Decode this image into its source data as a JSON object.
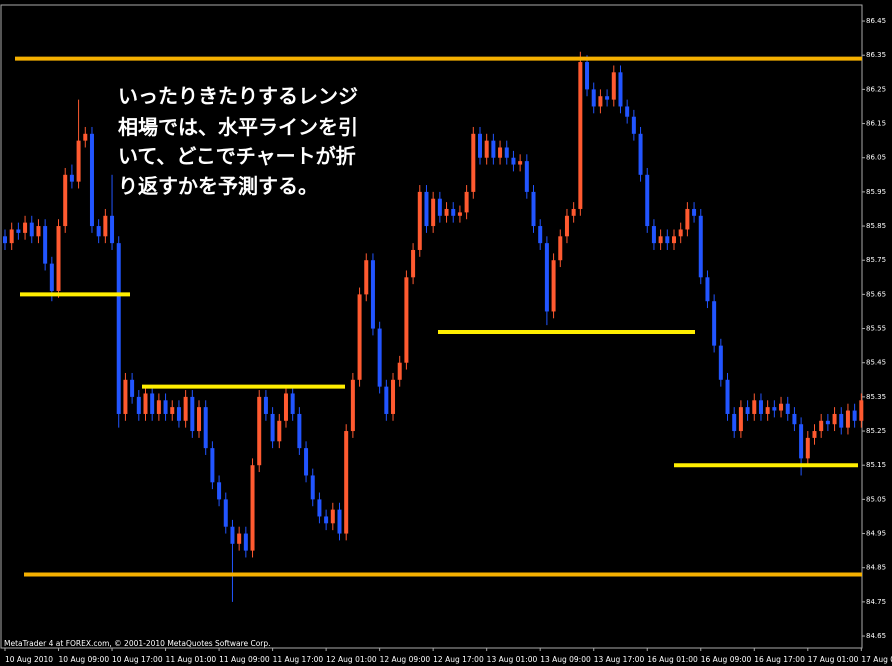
{
  "chart_data": {
    "type": "candlestick",
    "footer": "MetaTrader 4 at FOREX.com, © 2001-2010 MetaQuotes Software Corp.",
    "annotation": [
      "いったりきたりするレンジ",
      "相場では、水平ラインを引",
      "いて、どこでチャートが折",
      "り返すかを予測する。"
    ],
    "up_color": "#ff5a30",
    "down_color": "#2255ff",
    "ylim": [
      84.615,
      86.497
    ],
    "yticks": [
      86.45,
      86.35,
      86.25,
      86.15,
      86.05,
      85.95,
      85.85,
      85.75,
      85.65,
      85.55,
      85.45,
      85.35,
      85.25,
      85.15,
      85.05,
      84.95,
      84.85,
      84.75,
      84.65
    ],
    "levels": [
      {
        "value": 86.34,
        "color": "#f5b000"
      },
      {
        "value": 85.65,
        "color": "#ffee00"
      },
      {
        "value": 85.38,
        "color": "#ffee00"
      },
      {
        "value": 85.54,
        "color": "#ffee00"
      },
      {
        "value": 85.15,
        "color": "#ffee00"
      },
      {
        "value": 84.83,
        "color": "#f5b000"
      }
    ],
    "categories": [
      "10 Aug 2010",
      null,
      null,
      null,
      null,
      null,
      null,
      null,
      "10 Aug 09:00",
      null,
      null,
      null,
      null,
      null,
      null,
      null,
      "10 Aug 17:00",
      null,
      null,
      null,
      null,
      null,
      null,
      null,
      "11 Aug 01:00",
      null,
      null,
      null,
      null,
      null,
      null,
      null,
      "11 Aug 09:00",
      null,
      null,
      null,
      null,
      null,
      null,
      null,
      "11 Aug 17:00",
      null,
      null,
      null,
      null,
      null,
      null,
      null,
      "12 Aug 01:00",
      null,
      null,
      null,
      null,
      null,
      null,
      null,
      "12 Aug 09:00",
      null,
      null,
      null,
      null,
      null,
      null,
      null,
      "12 Aug 17:00",
      null,
      null,
      null,
      null,
      null,
      null,
      null,
      "13 Aug 01:00",
      null,
      null,
      null,
      null,
      null,
      null,
      null,
      "13 Aug 09:00",
      null,
      null,
      null,
      null,
      null,
      null,
      null,
      "13 Aug 17:00",
      null,
      null,
      null,
      null,
      null,
      null,
      null,
      "16 Aug 01:00",
      null,
      null,
      null,
      null,
      null,
      null,
      null,
      "16 Aug 09:00",
      null,
      null,
      null,
      null,
      null,
      null,
      null,
      "16 Aug 17:00",
      null,
      null,
      null,
      null,
      null,
      null,
      null,
      "17 Aug 01:00",
      null,
      null,
      null,
      null,
      null,
      null,
      null,
      "17 Aug 09:00"
    ],
    "open": [
      85.82,
      85.8,
      85.84,
      85.83,
      85.86,
      85.82,
      85.85,
      85.74,
      85.66,
      85.85,
      86.0,
      85.98,
      86.1,
      86.12,
      85.85,
      85.82,
      85.88,
      85.8,
      85.3,
      85.4,
      85.35,
      85.3,
      85.36,
      85.3,
      85.34,
      85.3,
      85.32,
      85.28,
      85.35,
      85.25,
      85.32,
      85.2,
      85.1,
      85.05,
      84.97,
      84.92,
      84.95,
      84.9,
      85.15,
      85.35,
      85.3,
      85.22,
      85.28,
      85.36,
      85.3,
      85.2,
      85.12,
      85.05,
      85.0,
      84.98,
      85.02,
      84.95,
      85.25,
      85.4,
      85.65,
      85.75,
      85.55,
      85.38,
      85.3,
      85.4,
      85.45,
      85.7,
      85.78,
      85.95,
      85.85,
      85.93,
      85.88,
      85.9,
      85.88,
      85.89,
      85.95,
      86.12,
      86.05,
      86.1,
      86.05,
      86.08,
      86.05,
      86.03,
      86.04,
      85.95,
      85.85,
      85.8,
      85.6,
      85.75,
      85.82,
      85.88,
      85.9,
      86.33,
      86.25,
      86.2,
      86.23,
      86.22,
      86.3,
      86.2,
      86.17,
      86.12,
      86.0,
      85.85,
      85.8,
      85.82,
      85.8,
      85.82,
      85.84,
      85.9,
      85.88,
      85.7,
      85.63,
      85.5,
      85.4,
      85.3,
      85.25,
      85.32,
      85.3,
      85.34,
      85.3,
      85.32,
      85.31,
      85.33,
      85.3,
      85.27,
      85.17,
      85.23,
      85.25,
      85.28,
      85.27,
      85.3,
      85.26,
      85.31,
      85.28
    ],
    "high": [
      85.84,
      85.86,
      85.86,
      85.88,
      85.88,
      85.87,
      85.87,
      85.76,
      85.87,
      86.02,
      86.03,
      86.22,
      86.14,
      86.14,
      85.87,
      85.9,
      86.0,
      85.82,
      85.42,
      85.42,
      85.37,
      85.38,
      85.38,
      85.36,
      85.36,
      85.34,
      85.34,
      85.37,
      85.37,
      85.34,
      85.34,
      85.22,
      85.12,
      85.07,
      84.99,
      84.97,
      84.97,
      85.17,
      85.37,
      85.37,
      85.32,
      85.3,
      85.38,
      85.38,
      85.32,
      85.22,
      85.14,
      85.07,
      85.02,
      85.04,
      85.04,
      85.27,
      85.42,
      85.67,
      85.77,
      85.77,
      85.57,
      85.4,
      85.42,
      85.47,
      85.72,
      85.8,
      85.97,
      85.97,
      85.95,
      85.95,
      85.92,
      85.92,
      85.91,
      85.97,
      86.14,
      86.14,
      86.12,
      86.12,
      86.1,
      86.1,
      86.07,
      86.06,
      86.06,
      85.97,
      85.87,
      85.82,
      85.77,
      85.84,
      85.9,
      85.92,
      86.36,
      86.35,
      86.27,
      86.25,
      86.25,
      86.32,
      86.32,
      86.22,
      86.19,
      86.14,
      86.02,
      85.87,
      85.84,
      85.84,
      85.84,
      85.86,
      85.92,
      85.92,
      85.9,
      85.72,
      85.65,
      85.52,
      85.42,
      85.32,
      85.34,
      85.34,
      85.36,
      85.36,
      85.34,
      85.34,
      85.35,
      85.35,
      85.32,
      85.29,
      85.25,
      85.27,
      85.3,
      85.3,
      85.32,
      85.32,
      85.33,
      85.33,
      85.36
    ],
    "low": [
      85.78,
      85.78,
      85.81,
      85.81,
      85.8,
      85.8,
      85.72,
      85.63,
      85.64,
      85.83,
      85.96,
      85.96,
      86.08,
      85.83,
      85.8,
      85.8,
      85.78,
      85.26,
      85.28,
      85.33,
      85.28,
      85.28,
      85.28,
      85.28,
      85.28,
      85.28,
      85.26,
      85.26,
      85.23,
      85.23,
      85.18,
      85.08,
      85.03,
      84.95,
      84.75,
      84.9,
      84.88,
      84.88,
      85.13,
      85.28,
      85.2,
      85.2,
      85.26,
      85.28,
      85.18,
      85.1,
      85.03,
      84.98,
      84.96,
      84.96,
      84.93,
      84.93,
      85.23,
      85.38,
      85.63,
      85.53,
      85.36,
      85.28,
      85.28,
      85.38,
      85.43,
      85.68,
      85.76,
      85.83,
      85.83,
      85.86,
      85.86,
      85.86,
      85.86,
      85.87,
      85.93,
      86.03,
      86.03,
      86.03,
      86.03,
      86.03,
      86.01,
      86.01,
      85.93,
      85.83,
      85.78,
      85.56,
      85.58,
      85.73,
      85.8,
      85.86,
      85.88,
      86.23,
      86.18,
      86.18,
      86.2,
      86.2,
      86.18,
      86.15,
      86.1,
      85.98,
      85.83,
      85.78,
      85.78,
      85.78,
      85.78,
      85.8,
      85.82,
      85.86,
      85.68,
      85.61,
      85.48,
      85.38,
      85.28,
      85.23,
      85.23,
      85.28,
      85.28,
      85.28,
      85.28,
      85.29,
      85.29,
      85.28,
      85.25,
      85.12,
      85.15,
      85.21,
      85.23,
      85.25,
      85.25,
      85.24,
      85.24,
      85.26,
      85.26
    ],
    "close": [
      85.8,
      85.84,
      85.83,
      85.86,
      85.82,
      85.85,
      85.74,
      85.66,
      85.85,
      86.0,
      85.98,
      86.1,
      86.12,
      85.85,
      85.82,
      85.88,
      85.8,
      85.3,
      85.4,
      85.35,
      85.3,
      85.36,
      85.3,
      85.34,
      85.3,
      85.32,
      85.28,
      85.35,
      85.25,
      85.32,
      85.2,
      85.1,
      85.05,
      84.97,
      84.92,
      84.95,
      84.9,
      85.15,
      85.35,
      85.3,
      85.22,
      85.28,
      85.36,
      85.3,
      85.2,
      85.12,
      85.05,
      85.0,
      84.98,
      85.02,
      84.95,
      85.25,
      85.4,
      85.65,
      85.75,
      85.55,
      85.38,
      85.3,
      85.4,
      85.45,
      85.7,
      85.78,
      85.95,
      85.85,
      85.93,
      85.88,
      85.9,
      85.88,
      85.89,
      85.95,
      86.12,
      86.05,
      86.1,
      86.05,
      86.08,
      86.05,
      86.03,
      86.04,
      85.95,
      85.85,
      85.8,
      85.6,
      85.75,
      85.82,
      85.88,
      85.9,
      86.33,
      86.25,
      86.2,
      86.23,
      86.22,
      86.3,
      86.2,
      86.17,
      86.12,
      86.0,
      85.85,
      85.8,
      85.82,
      85.8,
      85.82,
      85.84,
      85.9,
      85.88,
      85.7,
      85.63,
      85.5,
      85.4,
      85.3,
      85.25,
      85.32,
      85.3,
      85.34,
      85.3,
      85.32,
      85.31,
      85.33,
      85.3,
      85.27,
      85.17,
      85.23,
      85.25,
      85.28,
      85.27,
      85.3,
      85.26,
      85.31,
      85.28,
      85.34
    ]
  }
}
